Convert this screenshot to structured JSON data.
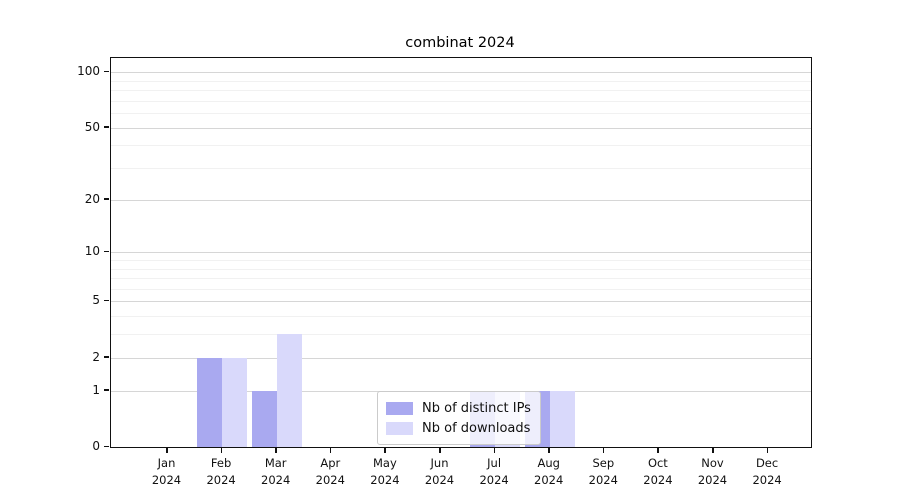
{
  "chart_data": {
    "type": "bar",
    "title": "combinat 2024",
    "categories": [
      "Jan",
      "Feb",
      "Mar",
      "Apr",
      "May",
      "Jun",
      "Jul",
      "Aug",
      "Sep",
      "Oct",
      "Nov",
      "Dec"
    ],
    "year_label": "2024",
    "series": [
      {
        "name": "Nb of distinct IPs",
        "color": "#a9a9f0",
        "values": [
          0,
          2,
          1,
          0,
          0,
          0,
          1,
          1,
          0,
          0,
          0,
          0
        ]
      },
      {
        "name": "Nb of downloads",
        "color": "#d9d9fb",
        "values": [
          0,
          2,
          3,
          0,
          0,
          0,
          1,
          1,
          0,
          0,
          0,
          0
        ]
      }
    ],
    "yticks": [
      0,
      1,
      2,
      5,
      10,
      20,
      50,
      100
    ],
    "y_minor_gridlines": [
      3,
      4,
      6,
      7,
      8,
      9,
      30,
      40,
      60,
      70,
      80,
      90
    ],
    "y_scale": "log10(1+v)",
    "ylim": [
      0,
      116
    ],
    "grid": "horizontal",
    "legend_position": "inside-bottom-center"
  }
}
